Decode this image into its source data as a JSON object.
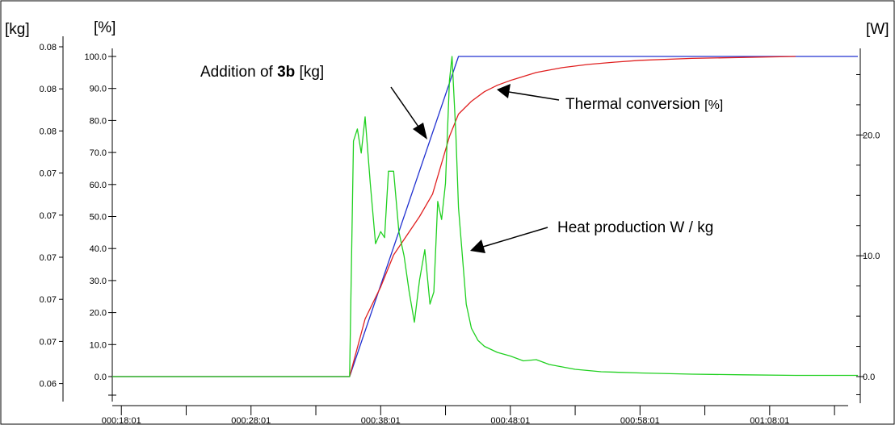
{
  "chart_data": {
    "type": "line",
    "units": {
      "left_outer": "[kg]",
      "left_inner": "[%]",
      "right": "[W]"
    },
    "y_kg_ticks": [
      "0.08",
      "0.08",
      "0.08",
      "0.07",
      "0.07",
      "0.07",
      "0.07",
      "0.07",
      "0.06"
    ],
    "y_pct_ticks": [
      "100.0",
      "90.0",
      "80.0",
      "70.0",
      "60.0",
      "50.0",
      "40.0",
      "30.0",
      "20.0",
      "10.0",
      "0.0"
    ],
    "y_w_ticks": [
      "20.0",
      "10.0",
      "0.0"
    ],
    "x_tick_labels": [
      "000:18:01",
      "000:28:01",
      "000:38:01",
      "000:48:01",
      "000:58:01",
      "001:08:01"
    ],
    "x_minutes": [
      18,
      28,
      38,
      48,
      58,
      68
    ],
    "xlim": [
      17.3,
      74.8
    ],
    "ylim_pct": [
      0,
      100
    ],
    "ylim_w": [
      0,
      26.5
    ],
    "grid": false,
    "annotations": {
      "addition_prefix": "Addition of ",
      "addition_bold": "3b",
      "addition_suffix": " [kg]",
      "thermal": "Thermal conversion ",
      "thermal_unit": "[%]",
      "heat": "Heat production W / kg"
    },
    "series": [
      {
        "key": "addition",
        "color": "#2030d0",
        "axis": "pct",
        "x": [
          17.3,
          35.6,
          44.0,
          74.8
        ],
        "y": [
          0,
          0,
          100,
          100
        ]
      },
      {
        "key": "thermal",
        "color": "#e02020",
        "axis": "pct",
        "x": [
          17.3,
          34.0,
          35.6,
          36.8,
          38.0,
          39.0,
          40.0,
          41.0,
          42.0,
          42.8,
          43.3,
          44.0,
          45.0,
          46.0,
          47.0,
          48.0,
          50.0,
          52.0,
          54.0,
          56.0,
          58.0,
          62.0,
          66.0,
          70.0
        ],
        "y": [
          0,
          0,
          0,
          18,
          28,
          38,
          44,
          50,
          57,
          68,
          75,
          82,
          86,
          89,
          91,
          92.5,
          95,
          96.5,
          97.5,
          98.2,
          98.8,
          99.4,
          99.7,
          100
        ]
      },
      {
        "key": "heat",
        "color": "#20d020",
        "axis": "w",
        "x": [
          17.3,
          35.0,
          35.6,
          35.9,
          36.2,
          36.5,
          36.8,
          37.2,
          37.6,
          38.0,
          38.3,
          38.6,
          39.0,
          39.4,
          39.8,
          40.2,
          40.6,
          41.0,
          41.4,
          41.8,
          42.1,
          42.4,
          42.7,
          43.0,
          43.3,
          43.5,
          43.8,
          44.0,
          44.3,
          44.6,
          45.0,
          45.5,
          46.0,
          47.0,
          48.0,
          49.0,
          50.0,
          51.0,
          52.0,
          53.0,
          55.0,
          58.0,
          62.0,
          66.0,
          70.0,
          74.8
        ],
        "y": [
          0,
          0,
          0,
          19.5,
          20.5,
          18.5,
          21.5,
          16.0,
          11.0,
          12.0,
          11.5,
          17.0,
          17.0,
          12.0,
          10.0,
          7.0,
          4.5,
          8.0,
          10.5,
          6.0,
          7.0,
          14.5,
          13.0,
          16.0,
          24.5,
          26.5,
          20.0,
          14.0,
          10.0,
          6.0,
          4.0,
          3.0,
          2.5,
          2.0,
          1.7,
          1.3,
          1.4,
          1.0,
          0.8,
          0.6,
          0.4,
          0.3,
          0.2,
          0.15,
          0.1,
          0.1
        ]
      }
    ]
  }
}
